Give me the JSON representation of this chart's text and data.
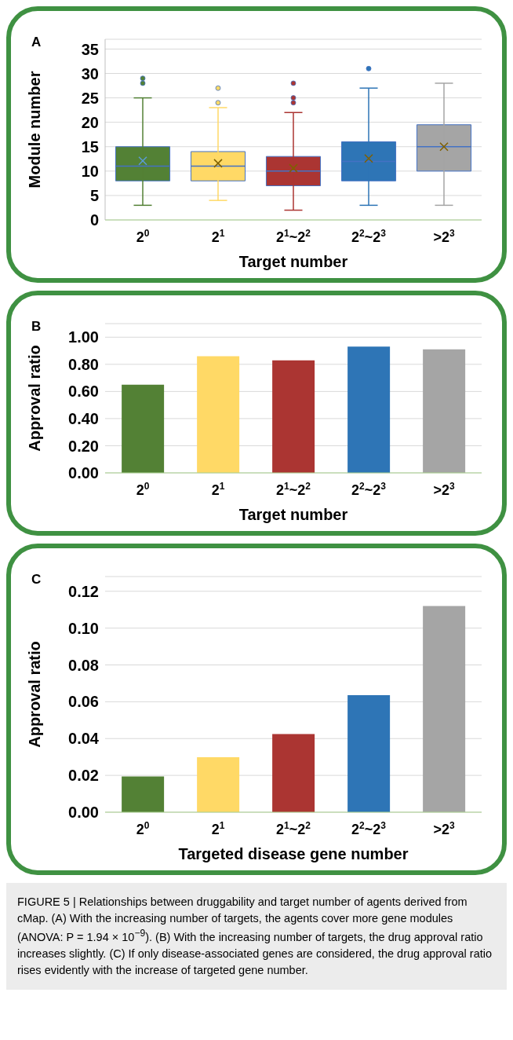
{
  "chart_data": [
    {
      "type": "box",
      "title": "A",
      "xlabel": "Target number",
      "ylabel": "Module number",
      "categories": [
        "2$^{0}$",
        "2$^{1}$",
        "2$^{1}$~2$^{2}$",
        "2$^{2}$~2$^{3}$",
        ">2$^{3}$"
      ],
      "colors": [
        "#538135",
        "#ffd966",
        "#ab3532",
        "#2e75b6",
        "#a5a5a5"
      ],
      "boxes": [
        {
          "low": 3,
          "q1": 8,
          "median": 11,
          "q3": 15,
          "high": 25,
          "mean": 12.1,
          "outliers": [
            28,
            29
          ]
        },
        {
          "low": 4,
          "q1": 8,
          "median": 11,
          "q3": 14,
          "high": 23,
          "mean": 11.6,
          "outliers": [
            24,
            27
          ]
        },
        {
          "low": 2,
          "q1": 7,
          "median": 10,
          "q3": 13,
          "high": 22,
          "mean": 10.6,
          "outliers": [
            24,
            25,
            28
          ]
        },
        {
          "low": 3,
          "q1": 8,
          "median": 12,
          "q3": 16,
          "high": 27,
          "mean": 12.6,
          "outliers": [
            31
          ]
        },
        {
          "low": 3,
          "q1": 10,
          "median": 15,
          "q3": 19.5,
          "high": 28,
          "mean": 15
        }
      ],
      "ylim": [
        0,
        37
      ],
      "yticks": [
        0,
        5,
        10,
        15,
        20,
        25,
        30,
        35
      ],
      "grid": "y"
    },
    {
      "type": "bar",
      "title": "B",
      "xlabel": "Target number",
      "ylabel": "Approval ratio",
      "categories": [
        "2$^{0}$",
        "2$^{1}$",
        "2$^{1}$~2$^{2}$",
        "2$^{2}$~2$^{3}$",
        ">2$^{3}$"
      ],
      "values": [
        0.65,
        0.86,
        0.83,
        0.93,
        0.91
      ],
      "colors": [
        "#538135",
        "#ffd966",
        "#ab3532",
        "#2e75b6",
        "#a5a5a5"
      ],
      "ylim": [
        0,
        1.1
      ],
      "yticks": [
        {
          "value": 0,
          "label": "0.00"
        },
        {
          "value": 0.2,
          "label": "0.20"
        },
        {
          "value": 0.4,
          "label": "0.40"
        },
        {
          "value": 0.6,
          "label": "0.60"
        },
        {
          "value": 0.8,
          "label": "0.80"
        },
        {
          "value": 1,
          "label": "1.00"
        }
      ],
      "grid": "y"
    },
    {
      "type": "bar",
      "title": "C",
      "xlabel": "Targeted disease gene number",
      "ylabel": "Approval ratio",
      "categories": [
        "2$^{0}$",
        "2$^{1}$",
        "2$^{1}$~2$^{2}$",
        "2$^{2}$~2$^{3}$",
        ">2$^{3}$"
      ],
      "values": [
        0.0194,
        0.0299,
        0.0425,
        0.0636,
        0.112
      ],
      "colors": [
        "#538135",
        "#ffd966",
        "#ab3532",
        "#2e75b6",
        "#a5a5a5"
      ],
      "ylim": [
        0,
        0.128
      ],
      "yticks": [
        {
          "value": 0,
          "label": "0.00"
        },
        {
          "value": 0.02,
          "label": "0.02"
        },
        {
          "value": 0.04,
          "label": "0.04"
        },
        {
          "value": 0.06,
          "label": "0.06"
        },
        {
          "value": 0.08,
          "label": "0.08"
        },
        {
          "value": 0.1,
          "label": "0.10"
        },
        {
          "value": 0.12,
          "label": "0.12"
        }
      ],
      "grid": "y",
      "annotations": [
        "FIGURE 5 | Relationships between druggability and target number of agents derived from cMap. (A) With the increasing number of targets, the agents cover more gene modules (ANOVA: P = 1.94 × 10$^{−9}$). (B) With the increasing number of targets, the drug approval ratio increases slightly. (C) If only disease-associated genes are considered, the drug approval ratio rises evidently with the increase of targeted gene number."
      ]
    }
  ]
}
